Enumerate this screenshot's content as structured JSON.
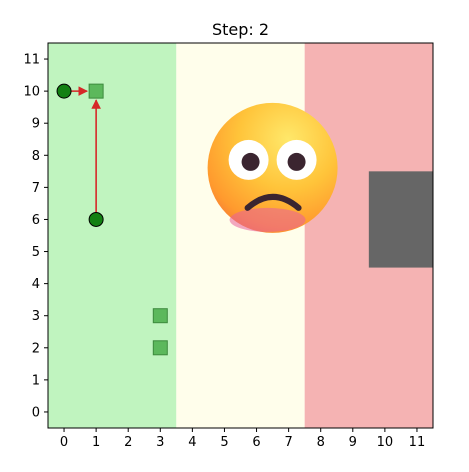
{
  "chart_data": {
    "type": "scatter",
    "title": "Step: 2",
    "xlabel": "",
    "ylabel": "",
    "xlim": [
      -0.5,
      11.5
    ],
    "ylim": [
      -0.5,
      11.5
    ],
    "xticks": [
      0,
      1,
      2,
      3,
      4,
      5,
      6,
      7,
      8,
      9,
      10,
      11
    ],
    "yticks": [
      0,
      1,
      2,
      3,
      4,
      5,
      6,
      7,
      8,
      9,
      10,
      11
    ],
    "grid": false,
    "regions": [
      {
        "x0": -0.5,
        "x1": 3.5,
        "y0": -0.5,
        "y1": 11.5,
        "color": "#c0f4bf"
      },
      {
        "x0": 3.5,
        "x1": 7.5,
        "y0": -0.5,
        "y1": 11.5,
        "color": "#fffeeb"
      },
      {
        "x0": 7.5,
        "x1": 11.5,
        "y0": -0.5,
        "y1": 11.5,
        "color": "#f5b3b3"
      }
    ],
    "obstacle": {
      "x0": 9.5,
      "x1": 11.5,
      "y0": 4.5,
      "y1": 7.5,
      "color": "#666666"
    },
    "agents": [
      {
        "x": 0,
        "y": 10,
        "color": "#138013"
      },
      {
        "x": 1,
        "y": 6,
        "color": "#138013"
      }
    ],
    "goals": [
      {
        "x": 1,
        "y": 10,
        "color": "#5cb85c"
      },
      {
        "x": 3,
        "y": 3,
        "color": "#5cb85c"
      },
      {
        "x": 3,
        "y": 2,
        "color": "#5cb85c"
      }
    ],
    "arrows": [
      {
        "from": [
          0,
          10
        ],
        "to": [
          1,
          10
        ],
        "color": "#d62728"
      },
      {
        "from": [
          1,
          6
        ],
        "to": [
          1,
          10
        ],
        "color": "#d62728"
      }
    ],
    "emoji": {
      "x": 6.5,
      "y": 7.7,
      "name": "worried-face-icon"
    }
  }
}
